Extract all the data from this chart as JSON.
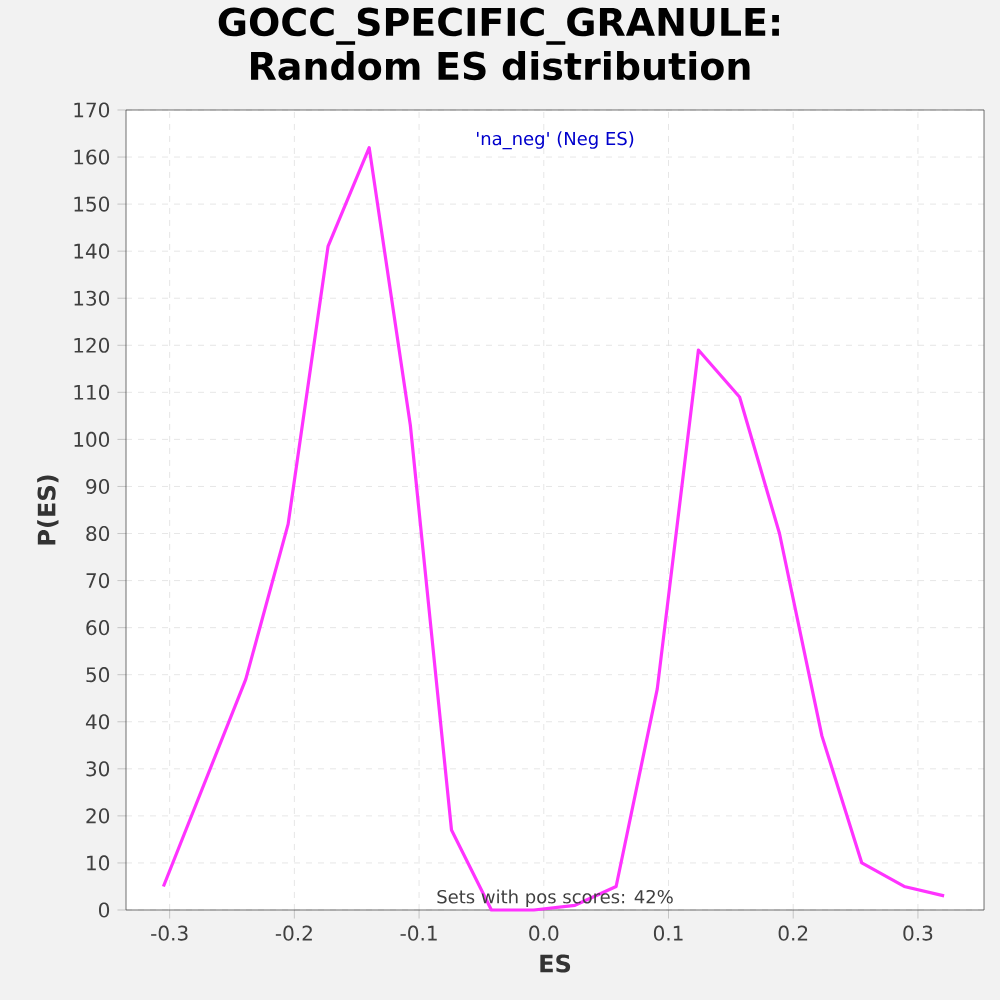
{
  "chart_data": {
    "type": "line",
    "title": "GOCC_SPECIFIC_GRANULE: Random ES distribution",
    "xlabel": "ES",
    "ylabel": "P(ES)",
    "series": [
      {
        "color": "#ff33ff",
        "x": [
          -0.305,
          -0.239,
          -0.205,
          -0.173,
          -0.14,
          -0.107,
          -0.074,
          -0.042,
          -0.008,
          0.025,
          0.058,
          0.091,
          0.124,
          0.157,
          0.189,
          0.223,
          0.255,
          0.289,
          0.321
        ],
        "values": [
          5,
          49,
          82,
          141,
          162,
          103,
          17,
          0,
          0,
          1,
          5,
          47,
          119,
          109,
          80,
          37,
          10,
          5,
          3
        ]
      }
    ],
    "xlim": [
      -0.335,
      0.353
    ],
    "ylim": [
      0,
      170
    ],
    "xticks": [
      -0.3,
      -0.2,
      -0.1,
      {
        "value": 0,
        "label": "0.0"
      },
      0.1,
      0.2,
      0.3
    ],
    "yticks": [
      0,
      10,
      20,
      30,
      40,
      50,
      60,
      70,
      80,
      90,
      100,
      110,
      120,
      130,
      140,
      150,
      160,
      170
    ],
    "grid": true,
    "marker": "none",
    "line_style": "solid",
    "annotations": [
      "'na_neg' (Neg ES)",
      "Sets with pos scores: 42%"
    ]
  }
}
